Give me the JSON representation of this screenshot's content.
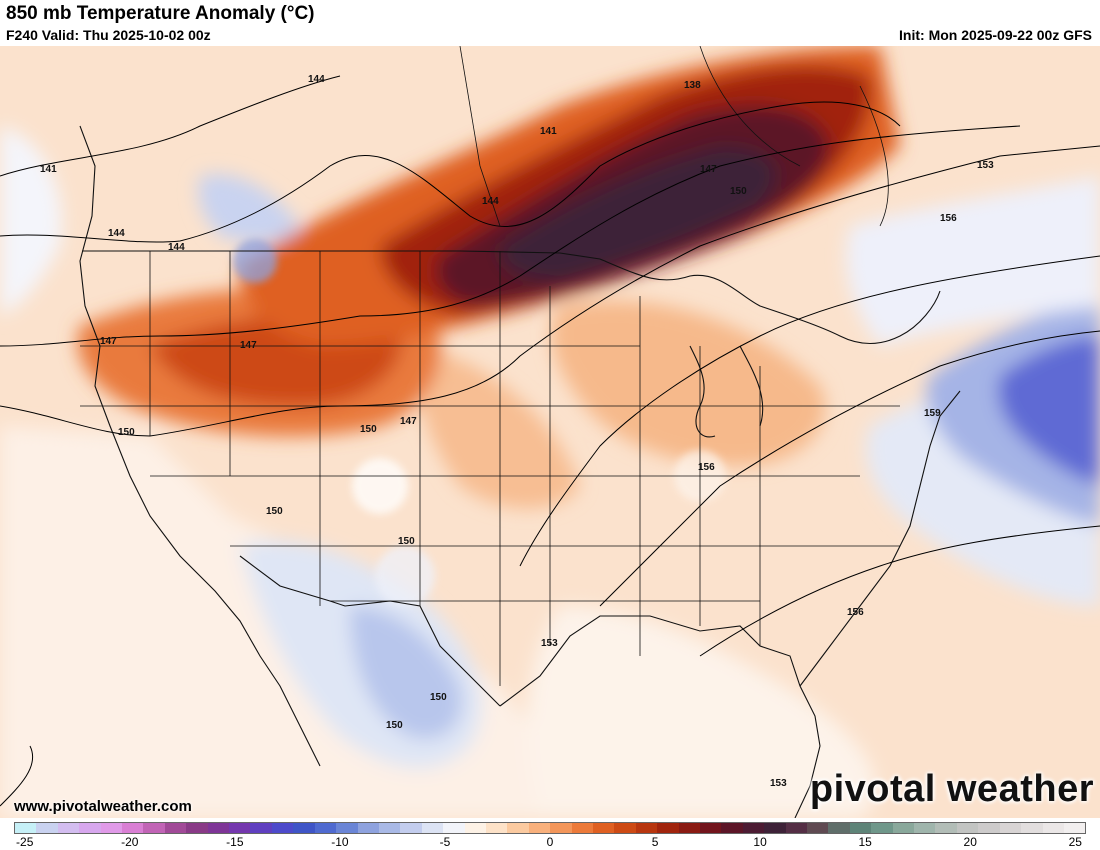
{
  "header": {
    "title": "850 mb Temperature Anomaly (°C)",
    "valid": "F240 Valid: Thu 2025-10-02 00z",
    "init": "Init: Mon 2025-09-22 00z GFS"
  },
  "footer": {
    "site": "www.pivotalweather.com",
    "brand": "pivotal weather"
  },
  "colorbar": {
    "ticks": [
      "-25",
      "-20",
      "-15",
      "-10",
      "-5",
      "0",
      "5",
      "10",
      "15",
      "20",
      "25"
    ],
    "min": -25,
    "max": 25,
    "colors": [
      "#c6f0f7",
      "#c9d2f0",
      "#d3bdf0",
      "#d7a7ee",
      "#e09ae8",
      "#d97fd4",
      "#c164b6",
      "#a14a98",
      "#893a87",
      "#7e3597",
      "#7437ae",
      "#5f3fc0",
      "#4d4acb",
      "#3f55c7",
      "#4f6ad0",
      "#6a85d6",
      "#8ea2de",
      "#a9b9e6",
      "#c3cdee",
      "#dce3f4",
      "#f2f4fa",
      "#fdf2e6",
      "#fde2c8",
      "#fbcaa0",
      "#f8b07c",
      "#f3965a",
      "#ec7a3a",
      "#df6022",
      "#cd4a14",
      "#b8360f",
      "#a1240d",
      "#8a1a12",
      "#72141c",
      "#5c1527",
      "#4c1b33",
      "#3e2238",
      "#542e45",
      "#5f4a52",
      "#5f6e6a",
      "#5e8478",
      "#6f978a",
      "#89a89b",
      "#9fb5ac",
      "#b2bdb7",
      "#c2c4c2",
      "#cdcbcb",
      "#d8d4d4",
      "#e2dede",
      "#ebe7e7",
      "#f2efef"
    ]
  },
  "contour_labels": [
    "144",
    "141",
    "138",
    "144",
    "144",
    "144",
    "141",
    "147",
    "150",
    "153",
    "156",
    "147",
    "147",
    "147",
    "150",
    "150",
    "150",
    "150",
    "150",
    "156",
    "159",
    "153",
    "156",
    "153",
    "150",
    "150",
    "153"
  ]
}
